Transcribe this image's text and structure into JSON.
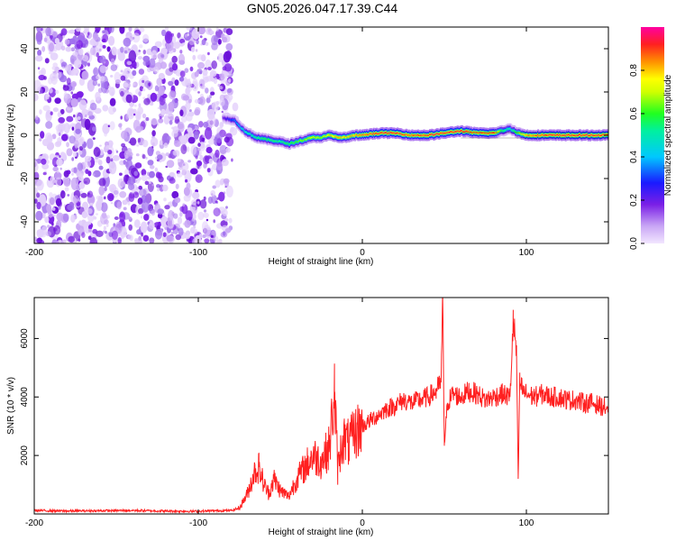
{
  "title": "GN05.2026.047.17.39.C44",
  "chart_data": [
    {
      "type": "heatmap",
      "name": "spectrogram",
      "xlabel": "Height of straight line (km)",
      "ylabel": "Frequency (Hz)",
      "xlim": [
        -200,
        150
      ],
      "ylim": [
        -50,
        50
      ],
      "xticks": [
        -200,
        -100,
        0,
        100
      ],
      "yticks": [
        -40,
        -20,
        0,
        20,
        40
      ],
      "colorbar": {
        "label": "Normalized spectral amplitude",
        "range": [
          0,
          1
        ],
        "ticks": [
          0.0,
          0.2,
          0.4,
          0.6,
          0.8
        ],
        "tick_labels": [
          "0.0",
          "0.2",
          "0.4",
          "0.6",
          "0.8"
        ]
      },
      "noise_region": {
        "x_from": -200,
        "x_to": -80,
        "description_free": true
      },
      "ridge": {
        "x": [
          -85,
          -78,
          -72,
          -65,
          -58,
          -50,
          -45,
          -40,
          -35,
          -30,
          -25,
          -20,
          -15,
          -10,
          -5,
          0,
          10,
          20,
          30,
          40,
          50,
          60,
          70,
          80,
          85,
          90,
          95,
          100,
          110,
          120,
          130,
          140,
          150
        ],
        "freq": [
          8,
          7,
          2,
          -1,
          -2,
          -3,
          -4,
          -3,
          -2,
          -1,
          -1,
          0,
          -1,
          -1,
          0,
          0,
          1,
          1,
          0,
          0,
          1,
          2,
          1,
          1,
          2,
          3,
          1,
          0,
          0,
          0,
          0,
          0,
          0
        ],
        "amplitude": [
          0.2,
          0.35,
          0.5,
          0.55,
          0.6,
          0.55,
          0.6,
          0.65,
          0.7,
          0.75,
          0.7,
          0.8,
          0.85,
          0.8,
          0.85,
          0.9,
          0.95,
          0.95,
          0.9,
          0.95,
          0.95,
          0.95,
          0.9,
          0.95,
          0.6,
          0.5,
          0.7,
          0.85,
          0.95,
          0.95,
          0.95,
          0.95,
          0.95
        ]
      }
    },
    {
      "type": "line",
      "name": "snr",
      "xlabel": "Height of straight line (km)",
      "ylabel": "SNR (10 * v/v)",
      "xlim": [
        -200,
        150
      ],
      "ylim": [
        0,
        7400
      ],
      "xticks": [
        -200,
        -100,
        0,
        100
      ],
      "yticks": [
        2000,
        4000,
        6000
      ],
      "series": [
        {
          "name": "SNR",
          "color": "#ff2020",
          "x": [
            -200,
            -180,
            -160,
            -140,
            -120,
            -100,
            -90,
            -80,
            -75,
            -70,
            -66,
            -63,
            -60,
            -57,
            -54,
            -50,
            -45,
            -40,
            -35,
            -30,
            -25,
            -20,
            -17,
            -15,
            -12,
            -8,
            -4,
            0,
            5,
            10,
            15,
            20,
            25,
            30,
            35,
            40,
            45,
            48,
            49,
            50,
            52,
            55,
            60,
            65,
            70,
            75,
            80,
            85,
            90,
            92,
            94,
            95,
            96,
            98,
            100,
            105,
            110,
            115,
            120,
            125,
            130,
            135,
            140,
            145,
            150
          ],
          "values": [
            120,
            100,
            110,
            120,
            100,
            90,
            110,
            120,
            200,
            700,
            1400,
            1600,
            1000,
            700,
            1200,
            800,
            600,
            1200,
            1600,
            2000,
            1800,
            2300,
            4200,
            1500,
            2600,
            2400,
            2800,
            3000,
            3200,
            3400,
            3600,
            3700,
            3900,
            3800,
            3900,
            4000,
            4200,
            4500,
            7300,
            2400,
            3800,
            4100,
            4000,
            4200,
            4100,
            3900,
            4000,
            4100,
            4000,
            6600,
            5500,
            1200,
            4500,
            4200,
            4100,
            4000,
            4100,
            4000,
            4000,
            3900,
            3900,
            3800,
            3800,
            3700,
            3600
          ]
        }
      ]
    }
  ]
}
